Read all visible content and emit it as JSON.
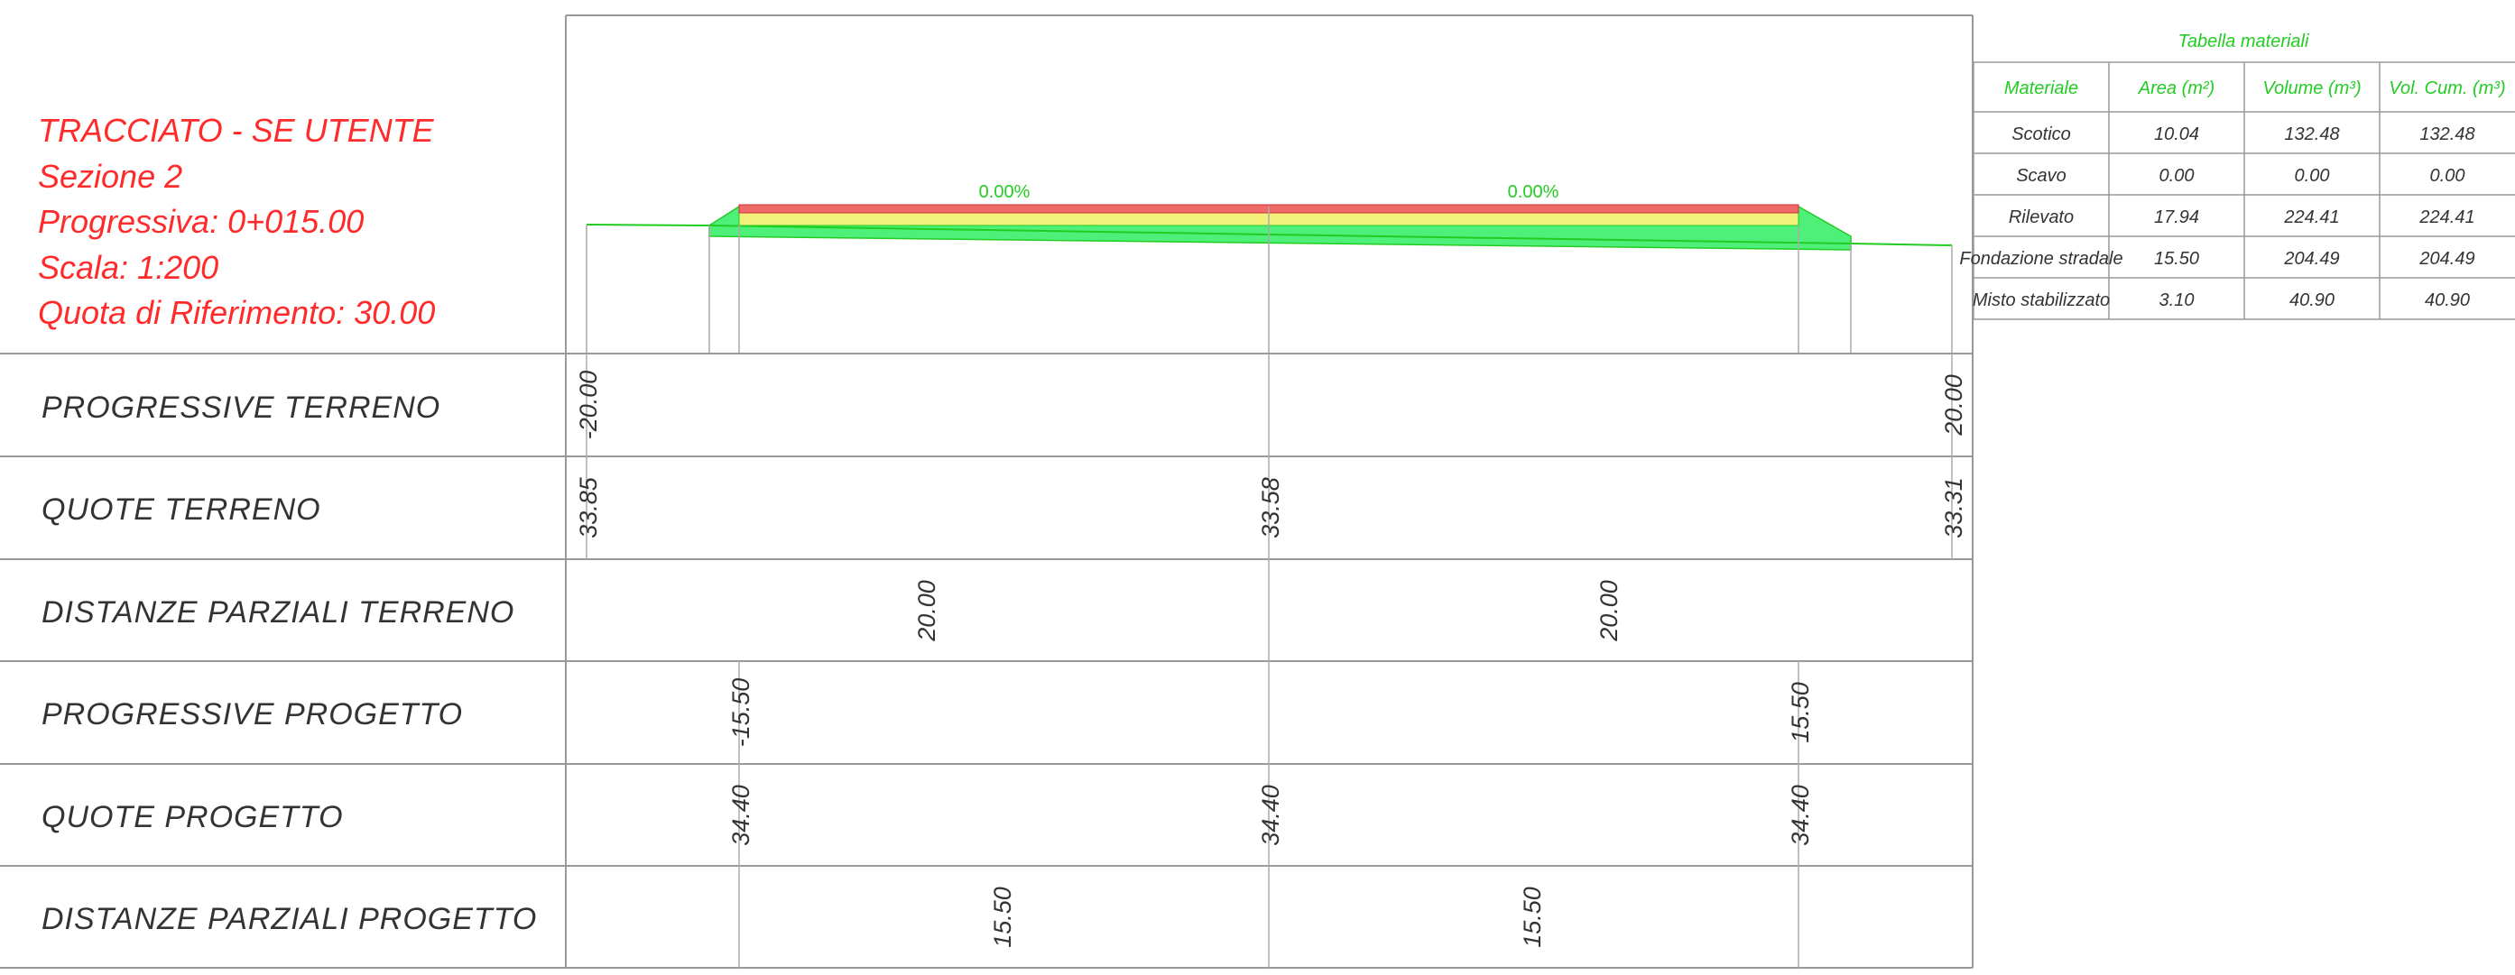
{
  "title_block": {
    "lines": [
      "TRACCIATO - SE UTENTE",
      "Sezione 2",
      "Progressiva: 0+015.00",
      "Scala: 1:200",
      "Quota di Riferimento: 30.00"
    ]
  },
  "section": {
    "slopes": [
      "0.00%",
      "0.00%"
    ]
  },
  "guitar_rows": [
    {
      "label": "PROGRESSIVE TERRENO",
      "values": [
        "-20.00",
        "20.00"
      ]
    },
    {
      "label": "QUOTE TERRENO",
      "values": [
        "33.85",
        "33.58",
        "33.31"
      ]
    },
    {
      "label": "DISTANZE PARZIALI TERRENO",
      "values": [
        "20.00",
        "20.00"
      ]
    },
    {
      "label": "PROGRESSIVE PROGETTO",
      "values": [
        "-15.50",
        "15.50"
      ]
    },
    {
      "label": "QUOTE PROGETTO",
      "values": [
        "34.40",
        "34.40",
        "34.40"
      ]
    },
    {
      "label": "DISTANZE PARZIALI PROGETTO",
      "values": [
        "15.50",
        "15.50"
      ]
    }
  ],
  "materials_table": {
    "title": "Tabella materiali",
    "headers": [
      "Materiale",
      "Area (m²)",
      "Volume (m³)",
      "Vol. Cum. (m³)"
    ],
    "rows": [
      [
        "Scotico",
        "10.04",
        "132.48",
        "132.48"
      ],
      [
        "Scavo",
        "0.00",
        "0.00",
        "0.00"
      ],
      [
        "Rilevato",
        "17.94",
        "224.41",
        "224.41"
      ],
      [
        "Fondazione stradale",
        "15.50",
        "204.49",
        "204.49"
      ],
      [
        "Misto stabilizzato",
        "3.10",
        "40.90",
        "40.90"
      ]
    ]
  },
  "colors": {
    "title": "#ff2a2a",
    "grid": "#999999",
    "embankment": "#4ef07a",
    "foundation": "#f0f07a",
    "pavement": "#f06a6a",
    "ground_line": "#22cc22"
  }
}
